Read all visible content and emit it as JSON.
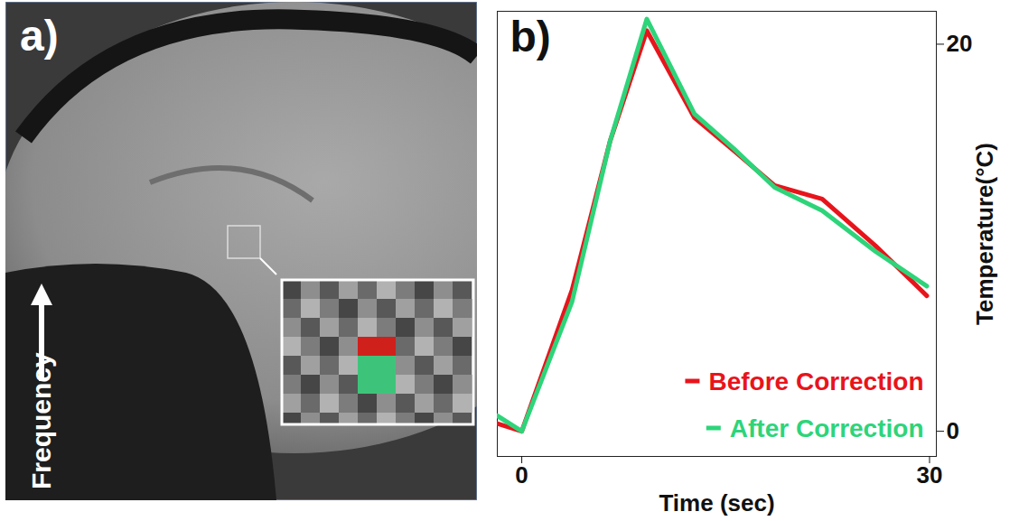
{
  "chart_data": {
    "type": "line",
    "title": "b)",
    "xlabel": "Time (sec)",
    "ylabel": "Temperature(°C)",
    "x": [
      -1.8,
      0,
      3.7,
      6.5,
      9.2,
      12.7,
      15.6,
      18.6,
      22.1,
      26.0,
      29.8
    ],
    "series": [
      {
        "name": "Before Correction",
        "color": "#e8141c",
        "values": [
          0.4,
          0,
          7.3,
          15.0,
          20.7,
          16.2,
          14.5,
          12.7,
          12.0,
          9.6,
          7.0
        ]
      },
      {
        "name": "After Correction",
        "color": "#2ed47a",
        "values": [
          0.8,
          0,
          6.7,
          15.0,
          21.3,
          16.4,
          14.6,
          12.6,
          11.4,
          9.3,
          7.5
        ]
      }
    ],
    "xlim": [
      -1.8,
      30.5
    ],
    "ylim": [
      -1.3,
      21.7
    ],
    "xticks": [
      0,
      30
    ],
    "yticks": [
      0,
      20
    ],
    "grid": false,
    "legend": "bottom-right"
  },
  "image_panel": {
    "label": "a)",
    "annotation": "Frequency"
  }
}
